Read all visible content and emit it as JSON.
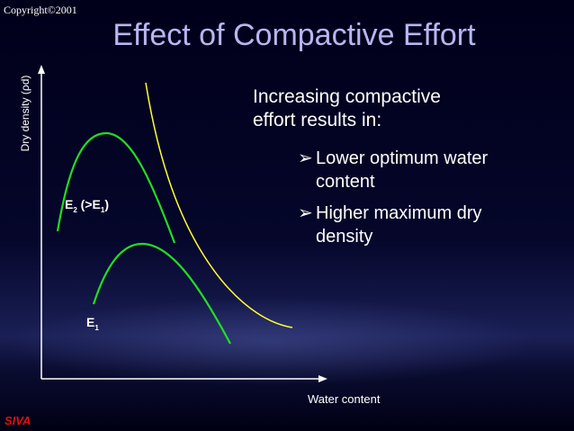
{
  "slide": {
    "copyright": "Copyright©2001",
    "title": "Effect of Compactive Effort",
    "footer": "SIVA"
  },
  "axes": {
    "ylabel": "Dry density (ρd)",
    "xlabel": "Water content"
  },
  "text": {
    "lead_line1": "Increasing compactive",
    "lead_line2": "effort results in:",
    "bullets": [
      {
        "line1": "Lower optimum water",
        "line2": "content"
      },
      {
        "line1": "Higher maximum dry",
        "line2": "density"
      }
    ]
  },
  "curves": {
    "e2": {
      "main": "E",
      "sub": "2",
      "tail_open": " (>E",
      "tail_sub": "1",
      "tail_close": ")"
    },
    "e1": {
      "main": "E",
      "sub": "1"
    },
    "zero_air_voids_color": "#ffff33",
    "compaction_color": "#22dd22"
  }
}
